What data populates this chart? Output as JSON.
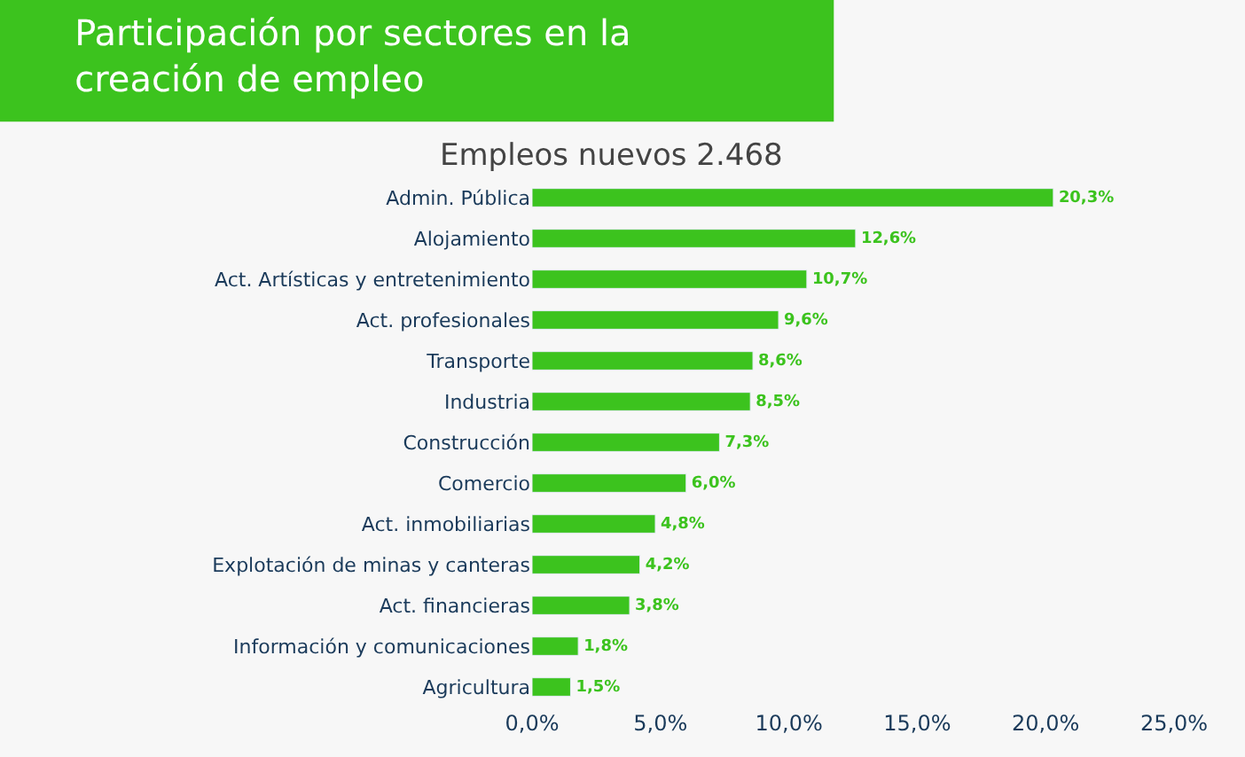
{
  "chart_data": {
    "type": "bar",
    "orientation": "horizontal",
    "title": "Participación por sectores en la creación de empleo",
    "subtitle": "Empleos nuevos 2.468",
    "categories": [
      "Admin. Pública",
      "Alojamiento",
      "Act. Artísticas y entretenimiento",
      "Act. profesionales",
      "Transporte",
      "Industria",
      "Construcción",
      "Comercio",
      "Act. inmobiliarias",
      "Explotación de minas y canteras",
      "Act. financieras",
      "Información y comunicaciones",
      "Agricultura"
    ],
    "values": [
      20.3,
      12.6,
      10.7,
      9.6,
      8.6,
      8.5,
      7.3,
      6.0,
      4.8,
      4.2,
      3.8,
      1.8,
      1.5
    ],
    "value_labels": [
      "20,3%",
      "12,6%",
      "10,7%",
      "9,6%",
      "8,6%",
      "8,5%",
      "7,3%",
      "6,0%",
      "4,8%",
      "4,2%",
      "3,8%",
      "1,8%",
      "1,5%"
    ],
    "color": "#3cc31e",
    "xlim": [
      0,
      25
    ],
    "xticks": [
      {
        "value": 0,
        "label": "0,0%"
      },
      {
        "value": 5,
        "label": "5,0%"
      },
      {
        "value": 10,
        "label": "10,0%"
      },
      {
        "value": 15,
        "label": "15,0%"
      },
      {
        "value": 20,
        "label": "20,0%"
      },
      {
        "value": 25,
        "label": "25,0%"
      }
    ],
    "grid": false,
    "legend": false
  }
}
